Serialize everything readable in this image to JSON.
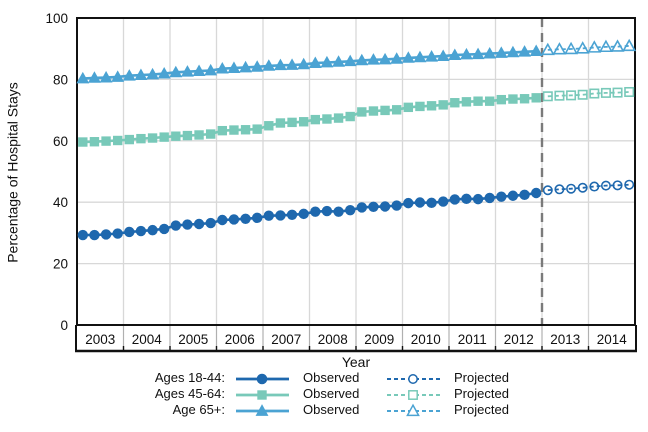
{
  "figure": {
    "background": "#ffffff",
    "border_color": "#111111",
    "grid_color": "#d8d8d8",
    "band_separator_color": "#b0b0b0",
    "divider_color": "#7a7a7a",
    "text_color": "#111111"
  },
  "chart_data": {
    "type": "line",
    "title": "",
    "xlabel": "Year",
    "ylabel": "Percentage of Hospital Stays",
    "ylim": [
      0,
      100
    ],
    "yticks": [
      0,
      20,
      40,
      60,
      80,
      100
    ],
    "years": [
      2003,
      2004,
      2005,
      2006,
      2007,
      2008,
      2009,
      2010,
      2011,
      2012,
      2013,
      2014
    ],
    "x_range": [
      2003,
      2015
    ],
    "points_per_year": 4,
    "observed_x_start": 2003.125,
    "projected_x_start": 2013.125,
    "x_step": 0.25,
    "divider_x": 2013.0,
    "grid": true,
    "legend_position": "bottom",
    "series": [
      {
        "name": "Ages 18-44",
        "slug": "ages-18-44",
        "marker": "circle",
        "color": "#1e68ae",
        "observed": [
          29.3,
          29.3,
          29.5,
          29.8,
          30.3,
          30.6,
          30.9,
          31.3,
          32.4,
          32.7,
          32.9,
          33.2,
          34.2,
          34.4,
          34.6,
          34.9,
          35.6,
          35.7,
          35.9,
          36.2,
          36.9,
          37.1,
          36.9,
          37.4,
          38.3,
          38.5,
          38.6,
          38.9,
          39.7,
          39.9,
          39.8,
          40.2,
          40.9,
          41.1,
          41.0,
          41.4,
          41.8,
          42.1,
          42.4,
          43.0
        ],
        "projected": [
          43.9,
          44.2,
          44.4,
          44.7,
          45.1,
          45.4,
          45.5,
          45.7
        ]
      },
      {
        "name": "Ages 45-64",
        "slug": "ages-45-64",
        "marker": "square",
        "color": "#78c9b9",
        "observed": [
          59.6,
          59.7,
          59.9,
          60.1,
          60.4,
          60.7,
          60.9,
          61.2,
          61.5,
          61.7,
          61.9,
          62.2,
          63.3,
          63.5,
          63.6,
          63.8,
          64.9,
          65.8,
          66.0,
          66.2,
          66.9,
          67.1,
          67.4,
          67.9,
          69.4,
          69.7,
          69.9,
          70.1,
          70.9,
          71.2,
          71.4,
          71.7,
          72.4,
          72.7,
          72.9,
          72.9,
          73.4,
          73.6,
          73.7,
          74.0
        ],
        "projected": [
          74.5,
          74.7,
          74.8,
          75.0,
          75.4,
          75.6,
          75.7,
          75.9
        ]
      },
      {
        "name": "Age 65+",
        "slug": "age-65-plus",
        "marker": "triangle",
        "color": "#4ba3d3",
        "observed": [
          80.3,
          80.5,
          80.6,
          80.8,
          81.2,
          81.4,
          81.6,
          81.9,
          82.3,
          82.5,
          82.7,
          82.9,
          83.5,
          83.7,
          83.9,
          84.1,
          84.4,
          84.6,
          84.7,
          84.9,
          85.3,
          85.5,
          85.7,
          85.9,
          86.2,
          86.4,
          86.5,
          86.7,
          87.0,
          87.2,
          87.4,
          87.6,
          87.9,
          88.1,
          88.2,
          88.4,
          88.6,
          88.8,
          89.0,
          89.2
        ],
        "projected": [
          89.6,
          89.8,
          89.9,
          90.1,
          90.4,
          90.6,
          90.7,
          90.9
        ]
      }
    ],
    "legend": {
      "rows": [
        {
          "label": "Ages 18-44:",
          "observed_label": "Observed",
          "projected_label": "Projected"
        },
        {
          "label": "Ages 45-64:",
          "observed_label": "Observed",
          "projected_label": "Projected"
        },
        {
          "label": "Age 65+:",
          "observed_label": "Observed",
          "projected_label": "Projected"
        }
      ]
    }
  }
}
